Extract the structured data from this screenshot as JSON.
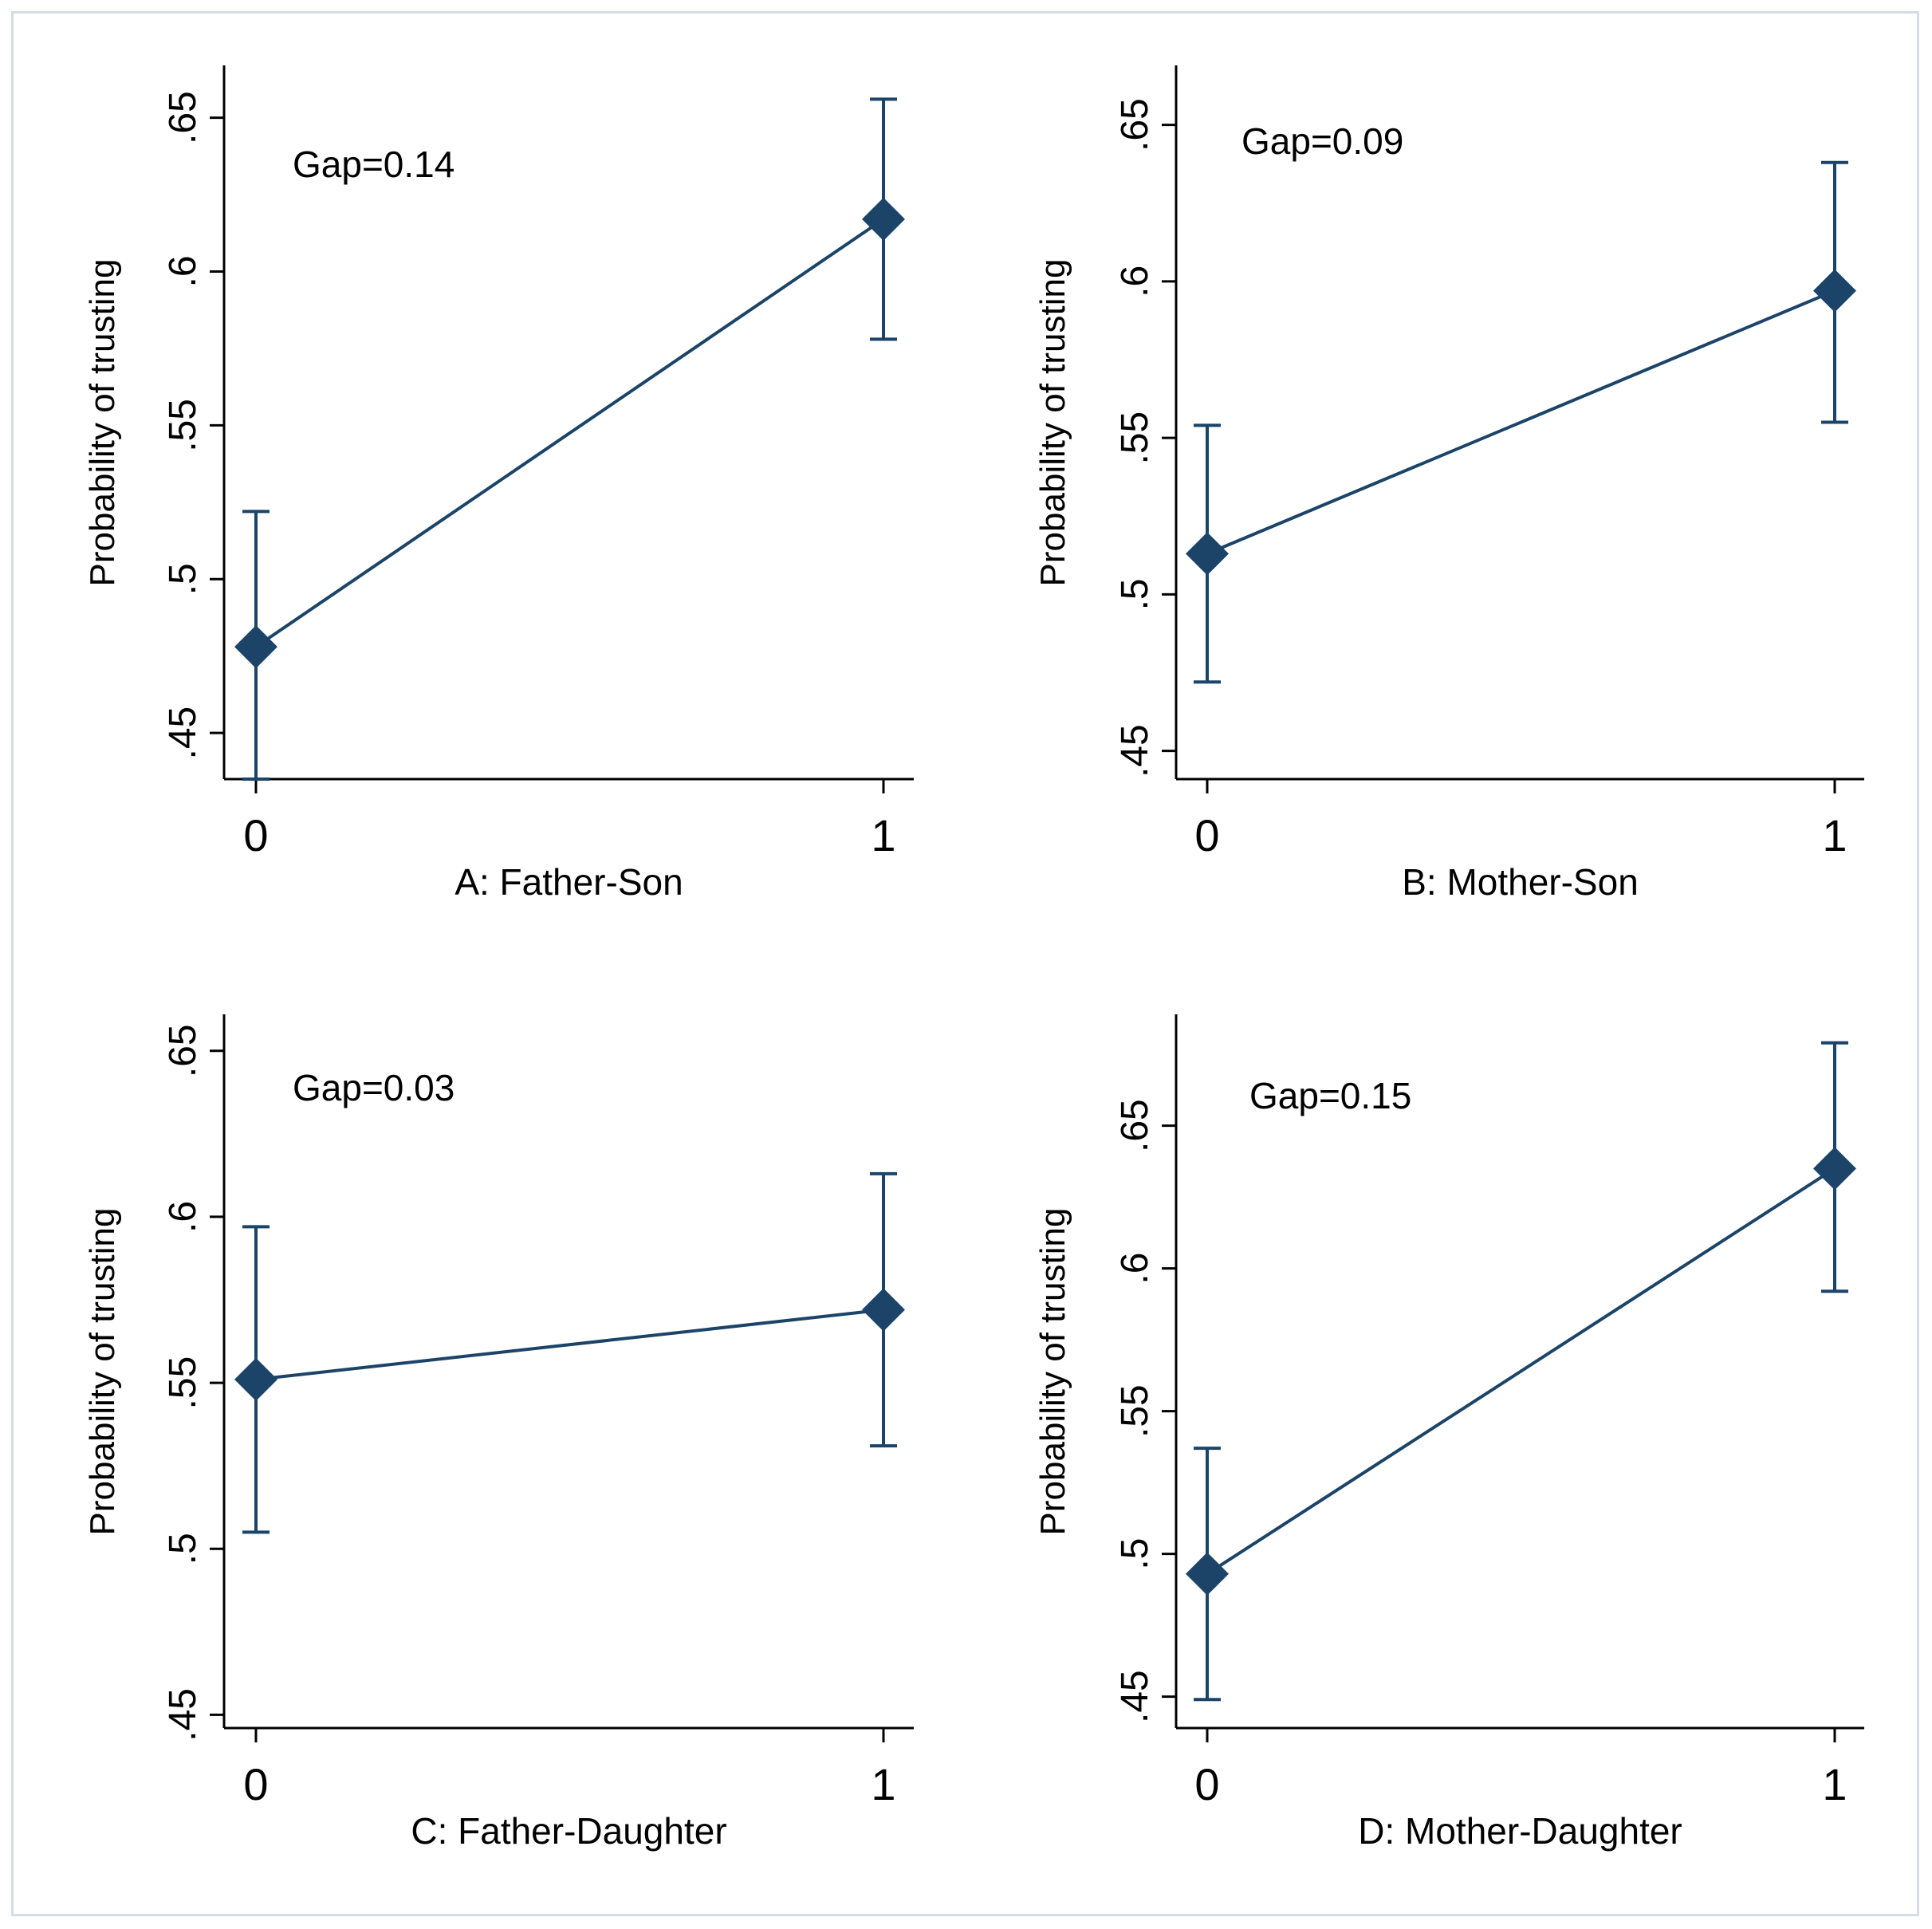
{
  "style": {
    "series_color": "#1b4468",
    "axis_color": "#000000",
    "background": "#ffffff"
  },
  "chart_data": [
    {
      "type": "line",
      "panel": "A",
      "xlabel": "A: Father-Son",
      "ylabel": "Probability of trusting",
      "annotation": "Gap=0.14",
      "x": [
        0,
        1
      ],
      "y": [
        0.478,
        0.617
      ],
      "ci_low": [
        0.435,
        0.578
      ],
      "ci_high": [
        0.522,
        0.656
      ],
      "xticks": [
        "0",
        "1"
      ],
      "yticks": [
        0.45,
        0.5,
        0.55,
        0.6,
        0.65
      ],
      "ytick_labels": [
        ".45",
        ".5",
        ".55",
        ".6",
        ".65"
      ],
      "ylim": [
        0.435,
        0.667
      ],
      "grid": false,
      "marker": "diamond"
    },
    {
      "type": "line",
      "panel": "B",
      "xlabel": "B: Mother-Son",
      "ylabel": "Probability of trusting",
      "annotation": "Gap=0.09",
      "x": [
        0,
        1
      ],
      "y": [
        0.513,
        0.597
      ],
      "ci_low": [
        0.472,
        0.555
      ],
      "ci_high": [
        0.554,
        0.638
      ],
      "xticks": [
        "0",
        "1"
      ],
      "yticks": [
        0.45,
        0.5,
        0.55,
        0.6,
        0.65
      ],
      "ytick_labels": [
        ".45",
        ".5",
        ".55",
        ".6",
        ".65"
      ],
      "ylim": [
        0.441,
        0.669
      ],
      "grid": false,
      "marker": "diamond"
    },
    {
      "type": "line",
      "panel": "C",
      "xlabel": "C: Father-Daughter",
      "ylabel": "Probability of trusting",
      "annotation": "Gap=0.03",
      "x": [
        0,
        1
      ],
      "y": [
        0.551,
        0.572
      ],
      "ci_low": [
        0.505,
        0.531
      ],
      "ci_high": [
        0.597,
        0.613
      ],
      "xticks": [
        "0",
        "1"
      ],
      "yticks": [
        0.45,
        0.5,
        0.55,
        0.6,
        0.65
      ],
      "ytick_labels": [
        ".45",
        ".5",
        ".55",
        ".6",
        ".65"
      ],
      "ylim": [
        0.446,
        0.661
      ],
      "grid": false,
      "marker": "diamond"
    },
    {
      "type": "line",
      "panel": "D",
      "xlabel": "D: Mother-Daughter",
      "ylabel": "Probability of trusting",
      "annotation": "Gap=0.15",
      "x": [
        0,
        1
      ],
      "y": [
        0.493,
        0.635
      ],
      "ci_low": [
        0.449,
        0.592
      ],
      "ci_high": [
        0.537,
        0.679
      ],
      "xticks": [
        "0",
        "1"
      ],
      "yticks": [
        0.45,
        0.5,
        0.55,
        0.6,
        0.65
      ],
      "ytick_labels": [
        ".45",
        ".5",
        ".55",
        ".6",
        ".65"
      ],
      "ylim": [
        0.439,
        0.689
      ],
      "grid": false,
      "marker": "diamond"
    }
  ]
}
